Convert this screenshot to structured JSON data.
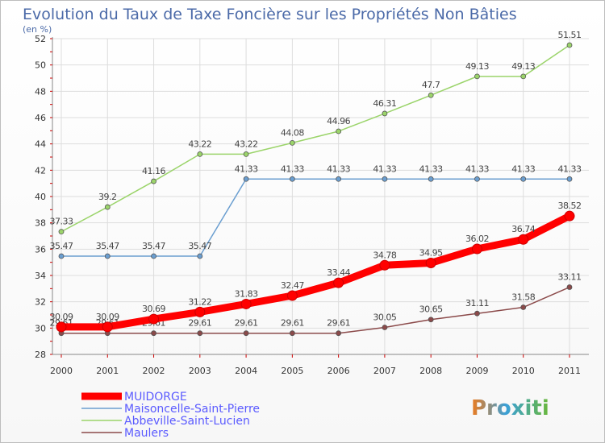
{
  "chart_data": {
    "type": "line",
    "title": "Evolution du Taux de Taxe Foncière sur les Propriétés Non Bâties",
    "subtitle": "(en %)",
    "xlabel": "",
    "ylabel": "",
    "x": [
      "2000",
      "2001",
      "2002",
      "2003",
      "2004",
      "2005",
      "2006",
      "2007",
      "2008",
      "2009",
      "2010",
      "2011"
    ],
    "ylim": [
      28,
      52
    ],
    "yticks": [
      "28",
      "30",
      "32",
      "34",
      "36",
      "38",
      "40",
      "42",
      "44",
      "46",
      "48",
      "50",
      "52"
    ],
    "grid": true,
    "legend_position": "bottom-left",
    "series": [
      {
        "name": "MUIDORGE",
        "color": "#ff0000",
        "values": [
          30.09,
          30.09,
          30.69,
          31.22,
          31.83,
          32.47,
          33.44,
          34.78,
          34.95,
          36.02,
          36.74,
          38.52
        ],
        "labels": [
          "30.09",
          "30.09",
          "30.69",
          "31.22",
          "31.83",
          "32.47",
          "33.44",
          "34.78",
          "34.95",
          "36.02",
          "36.74",
          "38.52"
        ]
      },
      {
        "name": "Maisoncelle-Saint-Pierre",
        "color": "#6a9ed0",
        "values": [
          35.47,
          35.47,
          35.47,
          35.47,
          41.33,
          41.33,
          41.33,
          41.33,
          41.33,
          41.33,
          41.33,
          41.33
        ],
        "labels": [
          "35.47",
          "35.47",
          "35.47",
          "35.47",
          "41.33",
          "41.33",
          "41.33",
          "41.33",
          "41.33",
          "41.33",
          "41.33",
          "41.33"
        ]
      },
      {
        "name": "Abbeville-Saint-Lucien",
        "color": "#9bd46a",
        "values": [
          37.33,
          39.2,
          41.16,
          43.22,
          43.22,
          44.08,
          44.96,
          46.31,
          47.7,
          49.13,
          49.13,
          51.51
        ],
        "labels": [
          "37.33",
          "39.2",
          "41.16",
          "43.22",
          "43.22",
          "44.08",
          "44.96",
          "46.31",
          "47.7",
          "49.13",
          "49.13",
          "51.51"
        ]
      },
      {
        "name": "Maulers",
        "color": "#8b4a4a",
        "values": [
          29.61,
          29.61,
          29.61,
          29.61,
          29.61,
          29.61,
          29.61,
          30.05,
          30.65,
          31.11,
          31.58,
          33.11
        ],
        "labels": [
          "29.61",
          "29.61",
          "29.61",
          "29.61",
          "29.61",
          "29.61",
          "29.61",
          "30.05",
          "30.65",
          "31.11",
          "31.58",
          "33.11"
        ]
      }
    ]
  },
  "colors": {
    "title": "#4b6aa8",
    "legend_text": "#5b5bff",
    "grid": "#dddddd",
    "axis": "#888888"
  },
  "brand": {
    "logo_text": "Proxiti"
  }
}
